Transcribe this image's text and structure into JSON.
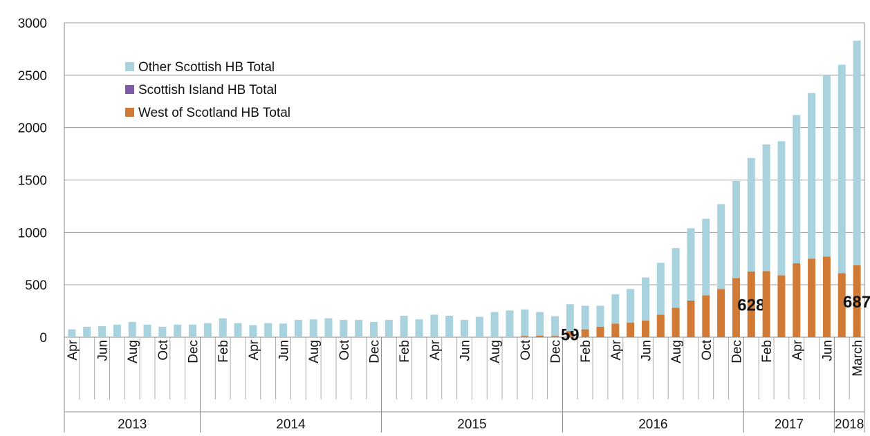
{
  "chart_data": {
    "type": "stacked_bar",
    "categories": [
      "Apr",
      null,
      "Jun",
      null,
      "Aug",
      null,
      "Oct",
      null,
      "Dec",
      null,
      "Feb",
      null,
      "Apr",
      null,
      "Jun",
      null,
      "Aug",
      null,
      "Oct",
      null,
      "Dec",
      null,
      "Feb",
      null,
      "Apr",
      null,
      "Jun",
      null,
      "Aug",
      null,
      "Oct",
      null,
      "Dec",
      null,
      "Feb",
      null,
      "Apr",
      null,
      "Jun",
      null,
      "Aug",
      null,
      "Oct",
      null,
      "Dec",
      null,
      "Feb",
      null,
      "Apr",
      null,
      "Jun",
      null,
      "March"
    ],
    "category_groups": [
      {
        "label": "2013",
        "span": 9
      },
      {
        "label": "2014",
        "span": 12
      },
      {
        "label": "2015",
        "span": 12
      },
      {
        "label": "2016",
        "span": 12
      },
      {
        "label": "2017",
        "span": 6
      },
      {
        "label": "2018",
        "span": 2
      }
    ],
    "series": [
      {
        "name": "West of Scotland HB Total",
        "color": "#d07a35",
        "values": [
          0,
          0,
          0,
          0,
          0,
          0,
          0,
          0,
          0,
          0,
          0,
          0,
          0,
          0,
          0,
          0,
          0,
          0,
          0,
          0,
          0,
          0,
          0,
          0,
          0,
          0,
          0,
          0,
          0,
          0,
          12,
          15,
          12,
          59,
          75,
          100,
          130,
          140,
          160,
          215,
          280,
          350,
          400,
          460,
          565,
          628,
          630,
          590,
          705,
          750,
          770,
          610,
          687
        ],
        "value_labels": [
          null,
          null,
          null,
          null,
          null,
          null,
          null,
          null,
          null,
          null,
          null,
          null,
          null,
          null,
          null,
          null,
          null,
          null,
          null,
          null,
          null,
          null,
          null,
          null,
          null,
          null,
          null,
          null,
          null,
          null,
          null,
          null,
          null,
          "59",
          null,
          null,
          null,
          null,
          null,
          null,
          null,
          null,
          null,
          null,
          null,
          "628",
          null,
          null,
          null,
          null,
          null,
          null,
          "687"
        ]
      },
      {
        "name": "Scottish Island HB Total",
        "color": "#7f5aa8",
        "values": [
          0,
          0,
          0,
          0,
          0,
          0,
          0,
          0,
          0,
          0,
          0,
          0,
          0,
          0,
          0,
          0,
          0,
          0,
          0,
          0,
          0,
          0,
          0,
          0,
          0,
          0,
          0,
          0,
          0,
          0,
          0,
          0,
          0,
          0,
          0,
          0,
          0,
          0,
          0,
          0,
          0,
          0,
          0,
          0,
          0,
          0,
          0,
          0,
          0,
          0,
          0,
          0,
          0
        ]
      },
      {
        "name": "Other Scottish HB Total",
        "color": "#a8d2de",
        "values": [
          75,
          100,
          105,
          120,
          145,
          120,
          100,
          120,
          120,
          135,
          180,
          135,
          115,
          135,
          130,
          165,
          170,
          180,
          165,
          165,
          145,
          165,
          205,
          170,
          215,
          205,
          165,
          195,
          240,
          255,
          253,
          225,
          188,
          256,
          225,
          200,
          280,
          320,
          410,
          495,
          570,
          690,
          730,
          810,
          925,
          1082,
          1210,
          1280,
          1415,
          1580,
          1730,
          1990,
          2143
        ]
      }
    ],
    "ylim": [
      0,
      3000
    ],
    "yticks": [
      0,
      500,
      1000,
      1500,
      2000,
      2500,
      3000
    ],
    "grid": true
  }
}
